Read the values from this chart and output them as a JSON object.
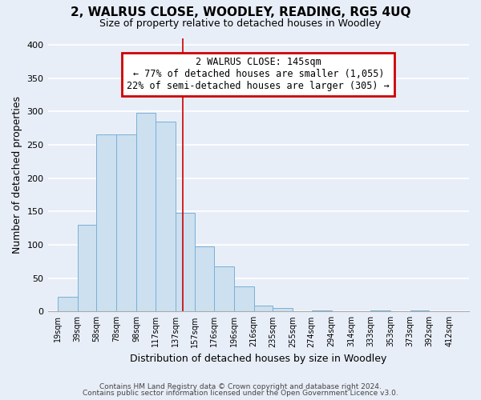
{
  "title": "2, WALRUS CLOSE, WOODLEY, READING, RG5 4UQ",
  "subtitle": "Size of property relative to detached houses in Woodley",
  "xlabel": "Distribution of detached houses by size in Woodley",
  "ylabel": "Number of detached properties",
  "bar_left_edges": [
    19,
    39,
    58,
    78,
    98,
    117,
    137,
    157,
    176,
    196,
    216,
    235,
    255,
    274,
    294,
    314,
    333,
    353,
    373,
    392
  ],
  "bar_heights": [
    22,
    130,
    265,
    265,
    298,
    285,
    148,
    98,
    67,
    38,
    9,
    5,
    0,
    2,
    0,
    0,
    2,
    0,
    2,
    0
  ],
  "bar_widths": [
    20,
    19,
    20,
    20,
    19,
    20,
    20,
    19,
    20,
    20,
    19,
    20,
    19,
    20,
    20,
    19,
    20,
    20,
    19,
    20
  ],
  "tick_labels": [
    "19sqm",
    "39sqm",
    "58sqm",
    "78sqm",
    "98sqm",
    "117sqm",
    "137sqm",
    "157sqm",
    "176sqm",
    "196sqm",
    "216sqm",
    "235sqm",
    "255sqm",
    "274sqm",
    "294sqm",
    "314sqm",
    "333sqm",
    "353sqm",
    "373sqm",
    "392sqm",
    "412sqm"
  ],
  "tick_positions": [
    19,
    39,
    58,
    78,
    98,
    117,
    137,
    157,
    176,
    196,
    216,
    235,
    255,
    274,
    294,
    314,
    333,
    353,
    373,
    392,
    412
  ],
  "bar_color": "#cce0f0",
  "bar_edge_color": "#7ab0d4",
  "vline_x": 145,
  "vline_color": "#cc0000",
  "ylim": [
    0,
    410
  ],
  "xlim": [
    9,
    432
  ],
  "annotation_line1": "2 WALRUS CLOSE: 145sqm",
  "annotation_line2": "← 77% of detached houses are smaller (1,055)",
  "annotation_line3": "22% of semi-detached houses are larger (305) →",
  "annotation_box_color": "white",
  "annotation_box_edge_color": "#cc0000",
  "footer_line1": "Contains HM Land Registry data © Crown copyright and database right 2024.",
  "footer_line2": "Contains public sector information licensed under the Open Government Licence v3.0.",
  "background_color": "#e8eef8",
  "plot_bg_color": "#e8eef8",
  "grid_color": "#ffffff",
  "yticks": [
    0,
    50,
    100,
    150,
    200,
    250,
    300,
    350,
    400
  ]
}
